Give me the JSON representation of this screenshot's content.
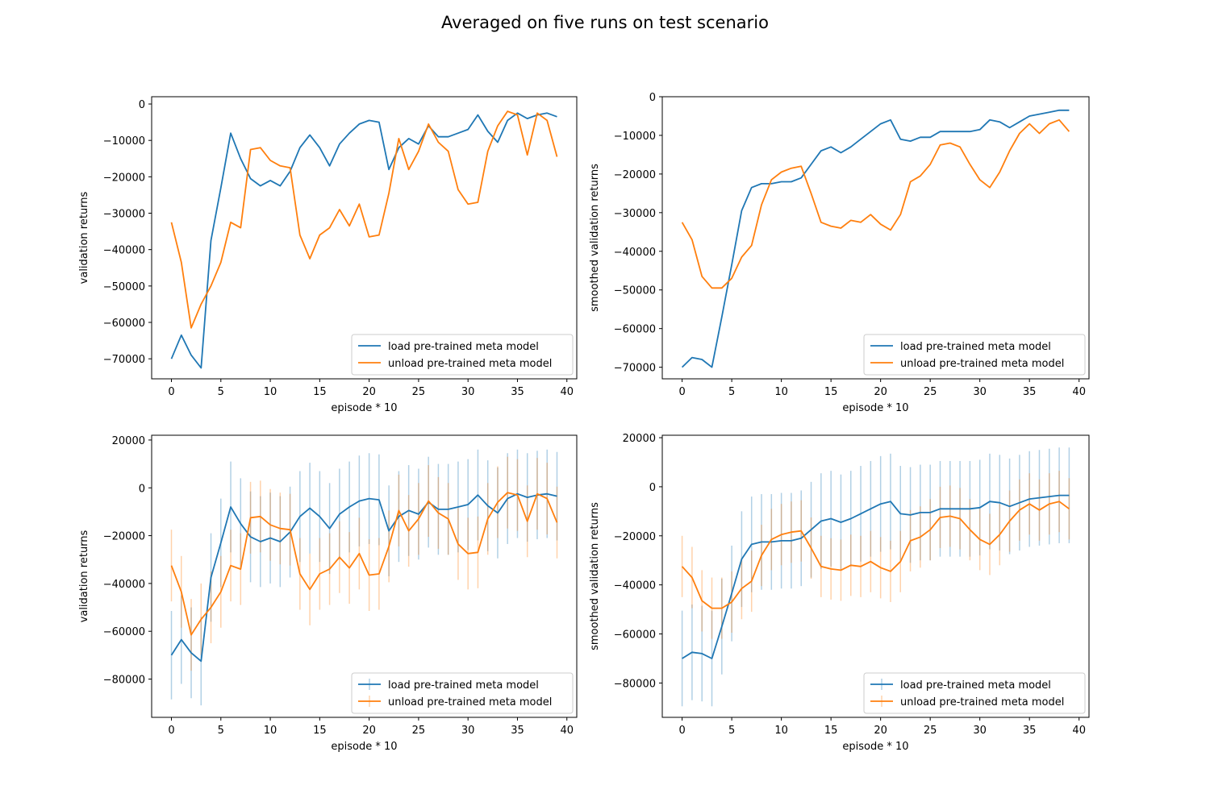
{
  "suptitle": "Averaged on five runs on test scenario",
  "colors": {
    "load": "#1f77b4",
    "unload": "#ff7f0e"
  },
  "legend": [
    "load pre-trained meta model",
    "unload pre-trained meta model"
  ],
  "chart_data": [
    {
      "type": "line",
      "xlabel": "episode * 10",
      "ylabel": "validation returns",
      "x": [
        0,
        1,
        2,
        3,
        4,
        5,
        6,
        7,
        8,
        9,
        10,
        11,
        12,
        13,
        14,
        15,
        16,
        17,
        18,
        19,
        20,
        21,
        22,
        23,
        24,
        25,
        26,
        27,
        28,
        29,
        30,
        31,
        32,
        33,
        34,
        35,
        36,
        37,
        38,
        39
      ],
      "xlim": [
        -2,
        41
      ],
      "ylim": [
        -75500,
        2000
      ],
      "xticks": [
        0,
        5,
        10,
        15,
        20,
        25,
        30,
        35,
        40
      ],
      "yticks": [
        -70000,
        -60000,
        -50000,
        -40000,
        -30000,
        -20000,
        -10000,
        0
      ],
      "legend_loc": "lower right",
      "grid": false,
      "series": [
        {
          "name": "load pre-trained meta model",
          "color": "#1f77b4",
          "values": [
            -70000,
            -63500,
            -69000,
            -72500,
            -37500,
            -23000,
            -8000,
            -15000,
            -20500,
            -22500,
            -21000,
            -22500,
            -18500,
            -12000,
            -8500,
            -12000,
            -17000,
            -11000,
            -8000,
            -5500,
            -4500,
            -5000,
            -18000,
            -12000,
            -9500,
            -11000,
            -6000,
            -9000,
            -9000,
            -8000,
            -7000,
            -3000,
            -7500,
            -10500,
            -4500,
            -2500,
            -4000,
            -3000,
            -2500,
            -3500
          ]
        },
        {
          "name": "unload pre-trained meta model",
          "color": "#ff7f0e",
          "values": [
            -32500,
            -43500,
            -61500,
            -55000,
            -50000,
            -43500,
            -32500,
            -34000,
            -12500,
            -12000,
            -15500,
            -17000,
            -17500,
            -36000,
            -42500,
            -36000,
            -34000,
            -29000,
            -33500,
            -27500,
            -36500,
            -36000,
            -24500,
            -9500,
            -18000,
            -13000,
            -5500,
            -10500,
            -13000,
            -23500,
            -27500,
            -27000,
            -13000,
            -6000,
            -2000,
            -3000,
            -14000,
            -2500,
            -4500,
            -14500
          ]
        }
      ]
    },
    {
      "type": "line",
      "xlabel": "episode * 10",
      "ylabel": "smoothed validation returns",
      "x": [
        0,
        1,
        2,
        3,
        4,
        5,
        6,
        7,
        8,
        9,
        10,
        11,
        12,
        13,
        14,
        15,
        16,
        17,
        18,
        19,
        20,
        21,
        22,
        23,
        24,
        25,
        26,
        27,
        28,
        29,
        30,
        31,
        32,
        33,
        34,
        35,
        36,
        37,
        38,
        39
      ],
      "xlim": [
        -2,
        41
      ],
      "ylim": [
        -73000,
        0
      ],
      "xticks": [
        0,
        5,
        10,
        15,
        20,
        25,
        30,
        35,
        40
      ],
      "yticks": [
        -70000,
        -60000,
        -50000,
        -40000,
        -30000,
        -20000,
        -10000,
        0
      ],
      "legend_loc": "lower right",
      "grid": false,
      "series": [
        {
          "name": "load pre-trained meta model",
          "color": "#1f77b4",
          "values": [
            -70000,
            -67500,
            -68000,
            -70000,
            -57000,
            -43500,
            -29500,
            -23500,
            -22500,
            -22500,
            -22000,
            -22000,
            -21000,
            -17500,
            -14000,
            -13000,
            -14500,
            -13000,
            -11000,
            -9000,
            -7000,
            -6000,
            -11000,
            -11500,
            -10500,
            -10500,
            -9000,
            -9000,
            -9000,
            -9000,
            -8500,
            -6000,
            -6500,
            -8000,
            -6500,
            -5000,
            -4500,
            -4000,
            -3500,
            -3500
          ]
        },
        {
          "name": "unload pre-trained meta model",
          "color": "#ff7f0e",
          "values": [
            -32500,
            -37000,
            -46500,
            -49500,
            -49500,
            -47000,
            -41500,
            -38500,
            -28000,
            -21500,
            -19500,
            -18500,
            -18000,
            -25000,
            -32500,
            -33500,
            -34000,
            -32000,
            -32500,
            -30500,
            -33000,
            -34500,
            -30500,
            -22000,
            -20500,
            -17500,
            -12500,
            -12000,
            -13000,
            -17500,
            -21500,
            -23500,
            -19500,
            -14000,
            -9500,
            -7000,
            -9500,
            -7000,
            -6000,
            -9000
          ]
        }
      ]
    },
    {
      "type": "line",
      "xlabel": "episode * 10",
      "ylabel": "validation returns",
      "x": [
        0,
        1,
        2,
        3,
        4,
        5,
        6,
        7,
        8,
        9,
        10,
        11,
        12,
        13,
        14,
        15,
        16,
        17,
        18,
        19,
        20,
        21,
        22,
        23,
        24,
        25,
        26,
        27,
        28,
        29,
        30,
        31,
        32,
        33,
        34,
        35,
        36,
        37,
        38,
        39
      ],
      "xlim": [
        -2,
        41
      ],
      "ylim": [
        -96000,
        22000
      ],
      "xticks": [
        0,
        5,
        10,
        15,
        20,
        25,
        30,
        35,
        40
      ],
      "yticks": [
        -80000,
        -60000,
        -40000,
        -20000,
        0,
        20000
      ],
      "legend_loc": "lower right",
      "grid": false,
      "error_bars": true,
      "series": [
        {
          "name": "load pre-trained meta model",
          "color": "#1f77b4",
          "values": [
            -70000,
            -63500,
            -69000,
            -72500,
            -37500,
            -23000,
            -8000,
            -15000,
            -20500,
            -22500,
            -21000,
            -22500,
            -18500,
            -12000,
            -8500,
            -12000,
            -17000,
            -11000,
            -8000,
            -5500,
            -4500,
            -5000,
            -18000,
            -12000,
            -9500,
            -11000,
            -6000,
            -9000,
            -9000,
            -8000,
            -7000,
            -3000,
            -7500,
            -10500,
            -4500,
            -2500,
            -4000,
            -3000,
            -2500,
            -3500
          ],
          "errors": [
            18500,
            18500,
            19000,
            18500,
            18500,
            18500,
            19000,
            19000,
            19000,
            19000,
            19000,
            19000,
            19000,
            19000,
            19000,
            19000,
            19000,
            19000,
            19000,
            19000,
            19000,
            19000,
            19000,
            19000,
            19000,
            19000,
            19000,
            19000,
            19000,
            19000,
            19000,
            19000,
            19000,
            19000,
            19000,
            18500,
            18500,
            18500,
            18500,
            18500
          ]
        },
        {
          "name": "unload pre-trained meta model",
          "color": "#ff7f0e",
          "values": [
            -32500,
            -43500,
            -61500,
            -55000,
            -50000,
            -43500,
            -32500,
            -34000,
            -12500,
            -12000,
            -15500,
            -17000,
            -17500,
            -36000,
            -42500,
            -36000,
            -34000,
            -29000,
            -33500,
            -27500,
            -36500,
            -36000,
            -24500,
            -9500,
            -18000,
            -13000,
            -5500,
            -10500,
            -13000,
            -23500,
            -27500,
            -27000,
            -13000,
            -6000,
            -2000,
            -3000,
            -14000,
            -2500,
            -4500,
            -14500
          ],
          "errors": [
            15000,
            15000,
            15000,
            15000,
            15000,
            15000,
            15000,
            15000,
            15000,
            15000,
            15000,
            15000,
            15000,
            15000,
            15000,
            15000,
            15000,
            15000,
            15000,
            15000,
            15000,
            15000,
            15000,
            15000,
            15000,
            15000,
            15000,
            15000,
            15000,
            15000,
            15000,
            15000,
            15000,
            15000,
            15000,
            15000,
            15000,
            15000,
            15000,
            15000
          ]
        }
      ]
    },
    {
      "type": "line",
      "xlabel": "episode * 10",
      "ylabel": "smoothed validation returns",
      "x": [
        0,
        1,
        2,
        3,
        4,
        5,
        6,
        7,
        8,
        9,
        10,
        11,
        12,
        13,
        14,
        15,
        16,
        17,
        18,
        19,
        20,
        21,
        22,
        23,
        24,
        25,
        26,
        27,
        28,
        29,
        30,
        31,
        32,
        33,
        34,
        35,
        36,
        37,
        38,
        39
      ],
      "xlim": [
        -2,
        41
      ],
      "ylim": [
        -94000,
        21000
      ],
      "xticks": [
        0,
        5,
        10,
        15,
        20,
        25,
        30,
        35,
        40
      ],
      "yticks": [
        -80000,
        -60000,
        -40000,
        -20000,
        0,
        20000
      ],
      "legend_loc": "lower right",
      "grid": false,
      "error_bars": true,
      "series": [
        {
          "name": "load pre-trained meta model",
          "color": "#1f77b4",
          "values": [
            -70000,
            -67500,
            -68000,
            -70000,
            -57000,
            -43500,
            -29500,
            -23500,
            -22500,
            -22500,
            -22000,
            -22000,
            -21000,
            -17500,
            -14000,
            -13000,
            -14500,
            -13000,
            -11000,
            -9000,
            -7000,
            -6000,
            -11000,
            -11500,
            -10500,
            -10500,
            -9000,
            -9000,
            -9000,
            -9000,
            -8500,
            -6000,
            -6500,
            -8000,
            -6500,
            -5000,
            -4500,
            -4000,
            -3500,
            -3500
          ],
          "errors": [
            19500,
            19500,
            19500,
            19500,
            19500,
            19500,
            19500,
            19500,
            19500,
            19500,
            19500,
            19500,
            19500,
            19500,
            19500,
            19500,
            19500,
            19500,
            19500,
            19500,
            19500,
            19500,
            19500,
            19500,
            19500,
            19500,
            19500,
            19500,
            19500,
            19500,
            19500,
            19500,
            19500,
            19500,
            19500,
            19500,
            19500,
            19500,
            19500,
            19500
          ]
        },
        {
          "name": "unload pre-trained meta model",
          "color": "#ff7f0e",
          "values": [
            -32500,
            -37000,
            -46500,
            -49500,
            -49500,
            -47000,
            -41500,
            -38500,
            -28000,
            -21500,
            -19500,
            -18500,
            -18000,
            -25000,
            -32500,
            -33500,
            -34000,
            -32000,
            -32500,
            -30500,
            -33000,
            -34500,
            -30500,
            -22000,
            -20500,
            -17500,
            -12500,
            -12000,
            -13000,
            -17500,
            -21500,
            -23500,
            -19500,
            -14000,
            -9500,
            -7000,
            -9500,
            -7000,
            -6000,
            -9000
          ],
          "errors": [
            12500,
            12500,
            12500,
            12500,
            12500,
            12500,
            12500,
            12500,
            12500,
            12500,
            12500,
            12500,
            12500,
            12500,
            12500,
            12500,
            12500,
            12500,
            12500,
            12500,
            12500,
            12500,
            12500,
            12500,
            12500,
            12500,
            12500,
            12500,
            12500,
            12500,
            12500,
            12500,
            12500,
            12500,
            12500,
            12500,
            12500,
            12500,
            12500,
            12500
          ]
        }
      ]
    }
  ]
}
